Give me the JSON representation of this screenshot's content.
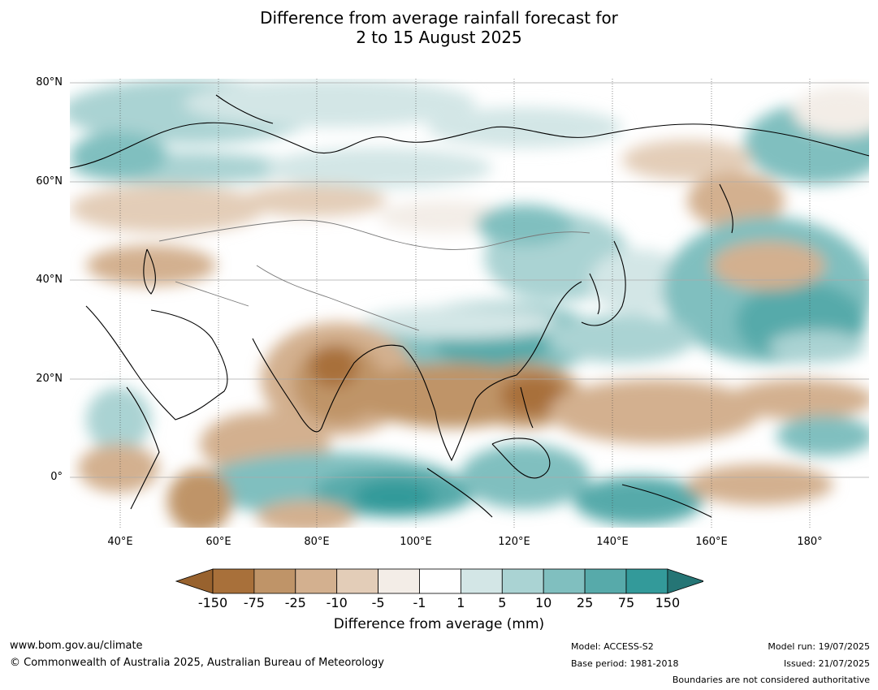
{
  "title": {
    "line1": "Difference from average rainfall forecast for",
    "line2": "2 to 15 August 2025"
  },
  "map": {
    "lat_labels": [
      "80°N",
      "60°N",
      "40°N",
      "20°N",
      "0°"
    ],
    "lon_labels": [
      "40°E",
      "60°E",
      "80°E",
      "100°E",
      "120°E",
      "140°E",
      "160°E",
      "180°"
    ],
    "region": "Asia and western Pacific",
    "lon_range": [
      30,
      192
    ],
    "lat_range": [
      -10,
      81
    ]
  },
  "colorbar": {
    "title": "Difference from average (mm)",
    "ticks": [
      "-150",
      "-75",
      "-25",
      "-10",
      "-5",
      "-1",
      "1",
      "5",
      "10",
      "25",
      "75",
      "150"
    ],
    "colors": [
      "#a8703a",
      "#bf9468",
      "#d3b08f",
      "#e3cdb8",
      "#f3ede7",
      "#ffffff",
      "#d3e6e6",
      "#aad3d3",
      "#80bfbf",
      "#57aaaa",
      "#339a9a"
    ],
    "under_color": "#98622e",
    "over_color": "#257575"
  },
  "footer": {
    "website": "www.bom.gov.au/climate",
    "copyright": "© Commonwealth of Australia 2025, Australian Bureau of Meteorology",
    "model": "Model: ACCESS-S2",
    "base_period": "Base period: 1981-2018",
    "model_run": "Model run: 19/07/2025",
    "issued": "Issued: 21/07/2025",
    "disclaimer": "Boundaries are not considered authoritative"
  }
}
